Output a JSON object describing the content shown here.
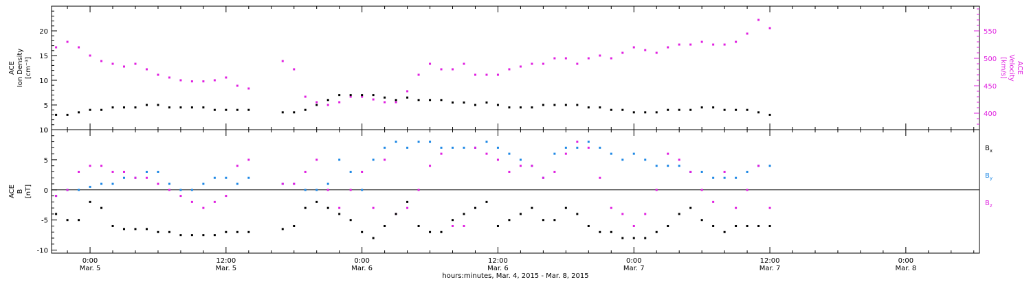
{
  "colors": {
    "black": "#000000",
    "magenta": "#e020e0",
    "blue": "#1e88e5"
  },
  "x_axis": {
    "title": "hours:minutes, Mar. 4, 2015 - Mar. 8, 2015",
    "ticks": [
      {
        "time": "0:00",
        "date": "Mar. 5",
        "h": 24
      },
      {
        "time": "12:00",
        "date": "Mar. 5",
        "h": 36
      },
      {
        "time": "0:00",
        "date": "Mar. 6",
        "h": 48
      },
      {
        "time": "12:00",
        "date": "Mar. 6",
        "h": 60
      },
      {
        "time": "0:00",
        "date": "Mar. 7",
        "h": 72
      },
      {
        "time": "12:00",
        "date": "Mar. 7",
        "h": 84
      },
      {
        "time": "0:00",
        "date": "Mar. 8",
        "h": 96
      }
    ]
  },
  "chart_data": [
    {
      "type": "scatter",
      "panel": "top",
      "ylabel_left": [
        "ACE",
        "Ion Density",
        "[cm⁻³]"
      ],
      "ylabel_right": [
        "ACE",
        "Velocity",
        "[km/s]"
      ],
      "x_range_hours_since_mar4": [
        20.6,
        102.5
      ],
      "ylim_left": [
        0,
        25
      ],
      "ylim_right": [
        370,
        595
      ],
      "yticks_left": [
        "0",
        "5",
        "10",
        "15",
        "20"
      ],
      "yticks_right": [
        "400",
        "450",
        "500",
        "550"
      ],
      "grid": false,
      "series": [
        {
          "name": "Ion Density",
          "axis": "left",
          "color": "#000000",
          "x": [
            21,
            22,
            23,
            24,
            25,
            26,
            27,
            28,
            29,
            30,
            31,
            32,
            33,
            34,
            35,
            36,
            37,
            38,
            41,
            42,
            43,
            44,
            45,
            46,
            47,
            48,
            49,
            50,
            51,
            52,
            53,
            54,
            55,
            56,
            57,
            58,
            59,
            60,
            61,
            62,
            63,
            64,
            65,
            66,
            67,
            68,
            69,
            70,
            71,
            72,
            73,
            74,
            75,
            76,
            77,
            78,
            79,
            80,
            81,
            82,
            83,
            84
          ],
          "y": [
            3,
            3,
            3.5,
            4,
            4,
            4.5,
            4.5,
            4.5,
            5,
            5,
            4.5,
            4.5,
            4.5,
            4.5,
            4,
            4,
            4,
            4,
            3.5,
            3.5,
            4,
            5,
            6,
            7,
            7,
            7,
            7,
            6.5,
            6,
            6.5,
            6,
            6,
            6,
            5.5,
            5.5,
            5,
            5.5,
            5,
            4.5,
            4.5,
            4.5,
            5,
            5,
            5,
            5,
            4.5,
            4.5,
            4,
            4,
            3.5,
            3.5,
            3.5,
            4,
            4,
            4,
            4.5,
            4.5,
            4,
            4,
            4,
            3.5,
            3
          ]
        },
        {
          "name": "Velocity",
          "axis": "right",
          "color": "#e020e0",
          "x": [
            21,
            22,
            23,
            24,
            25,
            26,
            27,
            28,
            29,
            30,
            31,
            32,
            33,
            34,
            35,
            36,
            37,
            38,
            41,
            42,
            43,
            44,
            45,
            46,
            47,
            48,
            49,
            50,
            51,
            52,
            53,
            54,
            55,
            56,
            57,
            58,
            59,
            60,
            61,
            62,
            63,
            64,
            65,
            66,
            67,
            68,
            69,
            70,
            71,
            72,
            73,
            74,
            75,
            76,
            77,
            78,
            79,
            80,
            81,
            82,
            83,
            84
          ],
          "y": [
            520,
            530,
            520,
            505,
            495,
            490,
            485,
            490,
            480,
            470,
            465,
            460,
            458,
            458,
            460,
            465,
            450,
            445,
            495,
            480,
            430,
            420,
            415,
            420,
            430,
            430,
            425,
            420,
            420,
            440,
            470,
            490,
            480,
            480,
            490,
            470,
            470,
            470,
            480,
            485,
            490,
            490,
            500,
            500,
            490,
            500,
            505,
            500,
            510,
            520,
            515,
            510,
            520,
            525,
            525,
            530,
            525,
            525,
            530,
            545,
            570,
            555
          ]
        }
      ]
    },
    {
      "type": "scatter",
      "panel": "bottom",
      "ylabel_left": [
        "ACE",
        "B",
        "[nT]"
      ],
      "x_range_hours_since_mar4": [
        20.6,
        102.5
      ],
      "ylim": [
        -10.5,
        10
      ],
      "yticks": [
        "-10",
        "-5",
        "0",
        "5",
        "10"
      ],
      "legend": "right",
      "grid": false,
      "series": [
        {
          "name": "Bx",
          "color": "#000000",
          "x": [
            21,
            22,
            23,
            24,
            25,
            26,
            27,
            28,
            29,
            30,
            31,
            32,
            33,
            34,
            35,
            36,
            37,
            38,
            41,
            42,
            43,
            44,
            45,
            46,
            47,
            48,
            49,
            50,
            51,
            52,
            53,
            54,
            55,
            56,
            57,
            58,
            59,
            60,
            61,
            62,
            63,
            64,
            65,
            66,
            67,
            68,
            69,
            70,
            71,
            72,
            73,
            74,
            75,
            76,
            77,
            78,
            79,
            80,
            81,
            82,
            83,
            84
          ],
          "y": [
            -4,
            -5,
            -5,
            -2,
            -3,
            -6,
            -6.5,
            -6.5,
            -6.5,
            -7,
            -7,
            -7.5,
            -7.5,
            -7.5,
            -7.5,
            -7,
            -7,
            -7,
            -6.5,
            -6,
            -3,
            -2,
            -3,
            -4,
            -5,
            -7,
            -8,
            -6,
            -4,
            -2,
            -6,
            -7,
            -7,
            -5,
            -4,
            -3,
            -2,
            -6,
            -5,
            -4,
            -3,
            -5,
            -5,
            -3,
            -4,
            -6,
            -7,
            -7,
            -8,
            -8,
            -8,
            -7,
            -6,
            -4,
            -3,
            -5,
            -6,
            -7,
            -6,
            -6,
            -6,
            -6
          ]
        },
        {
          "name": "By",
          "color": "#1e88e5",
          "x": [
            21,
            22,
            23,
            24,
            25,
            26,
            27,
            28,
            29,
            30,
            31,
            32,
            33,
            34,
            35,
            36,
            37,
            38,
            41,
            42,
            43,
            44,
            45,
            46,
            47,
            48,
            49,
            50,
            51,
            52,
            53,
            54,
            55,
            56,
            57,
            58,
            59,
            60,
            61,
            62,
            63,
            64,
            65,
            66,
            67,
            68,
            69,
            70,
            71,
            72,
            73,
            74,
            75,
            76,
            77,
            78,
            79,
            80,
            81,
            82,
            83,
            84
          ],
          "y": [
            -1,
            0,
            0,
            0.5,
            1,
            1,
            2,
            2,
            3,
            3,
            1,
            0,
            0,
            1,
            2,
            2,
            1,
            2,
            1,
            1,
            0,
            0,
            1,
            5,
            3,
            0,
            5,
            7,
            8,
            7,
            8,
            8,
            7,
            7,
            7,
            7,
            8,
            7,
            6,
            5,
            4,
            2,
            6,
            7,
            7,
            8,
            7,
            6,
            5,
            6,
            5,
            4,
            4,
            4,
            3,
            3,
            2,
            2,
            2,
            3,
            4,
            4
          ]
        },
        {
          "name": "Bz",
          "color": "#e020e0",
          "x": [
            21,
            22,
            23,
            24,
            25,
            26,
            27,
            28,
            29,
            30,
            31,
            32,
            33,
            34,
            35,
            36,
            37,
            38,
            41,
            42,
            43,
            44,
            45,
            46,
            47,
            48,
            49,
            50,
            51,
            52,
            53,
            54,
            55,
            56,
            57,
            58,
            59,
            60,
            61,
            62,
            63,
            64,
            65,
            66,
            67,
            68,
            69,
            70,
            71,
            72,
            73,
            74,
            75,
            76,
            77,
            78,
            79,
            80,
            81,
            82,
            83,
            84
          ],
          "y": [
            -1,
            0,
            3,
            4,
            4,
            3,
            3,
            2,
            2,
            1,
            0,
            -1,
            -2,
            -3,
            -2,
            -1,
            4,
            5,
            1,
            1,
            3,
            5,
            0,
            -3,
            0,
            3,
            -3,
            5,
            -4,
            -3,
            0,
            4,
            6,
            -6,
            -6,
            7,
            6,
            5,
            3,
            4,
            4,
            2,
            3,
            6,
            8,
            7,
            2,
            -3,
            -4,
            -6,
            -4,
            0,
            6,
            5,
            3,
            0,
            -2,
            3,
            -3,
            0,
            4,
            -3
          ]
        }
      ]
    }
  ]
}
